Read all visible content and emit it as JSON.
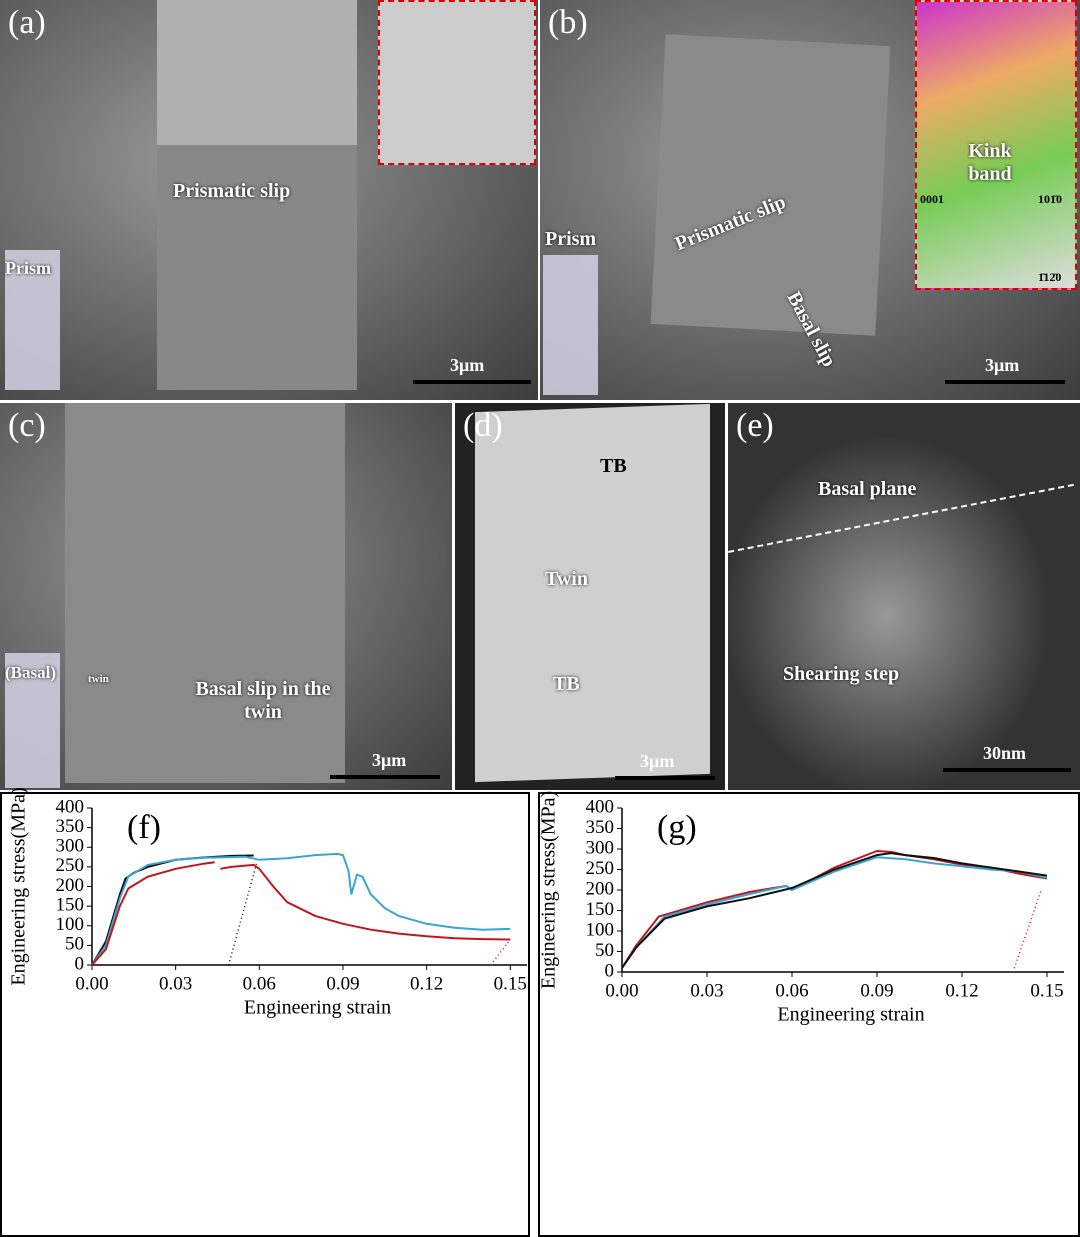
{
  "panels": [
    {
      "label": "(a)",
      "texts": [
        "Prismatic slip",
        "Prism"
      ],
      "scale_bar": "3μm"
    },
    {
      "label": "(b)",
      "texts": [
        "Prismatic slip",
        "Basal slip",
        "Prism",
        "Kink band",
        "0001",
        "101̄0",
        "1̄12̄0"
      ],
      "scale_bar": "3μm"
    },
    {
      "label": "(c)",
      "texts": [
        "Basal slip in the twin",
        "(Basal)",
        "twin"
      ],
      "scale_bar": "3μm"
    },
    {
      "label": "(d)",
      "texts": [
        "TB",
        "Twin",
        "TB"
      ],
      "scale_bar": "3μm"
    },
    {
      "label": "(e)",
      "texts": [
        "Basal plane",
        "Shearing step"
      ],
      "scale_bar": "30nm"
    }
  ],
  "chart_data": [
    {
      "type": "line",
      "panel_label": "(f)",
      "x_label": "Engineering strain",
      "y_label": "Engineering stress(MPa)",
      "xlim": [
        0,
        0.156
      ],
      "ylim": [
        0,
        400
      ],
      "xticks": [
        {
          "value": 0,
          "label": "0.00"
        },
        0.03,
        0.06,
        0.09,
        0.12,
        0.15
      ],
      "yticks": [
        0,
        50,
        100,
        150,
        200,
        250,
        300,
        350,
        400
      ],
      "series": [
        {
          "color": "#111111",
          "x": [
            0,
            0.005,
            0.01,
            0.012,
            0.015,
            0.02,
            0.03,
            0.04,
            0.05,
            0.058
          ],
          "values": [
            0,
            60,
            180,
            220,
            235,
            250,
            268,
            274,
            278,
            279
          ]
        },
        {
          "color": "#111111",
          "style": "dotted",
          "x": [
            0.049,
            0.059
          ],
          "values": [
            0,
            258
          ]
        },
        {
          "color": "#3aa6d0",
          "x": [
            0,
            0.005,
            0.01,
            0.013,
            0.02,
            0.03,
            0.04,
            0.05,
            0.055,
            0.06,
            0.07,
            0.08,
            0.088,
            0.09,
            0.092,
            0.093,
            0.095,
            0.097,
            0.1,
            0.105,
            0.11,
            0.12,
            0.13,
            0.14,
            0.15
          ],
          "values": [
            0,
            50,
            170,
            225,
            255,
            268,
            273,
            275,
            276,
            268,
            272,
            280,
            283,
            280,
            240,
            180,
            230,
            225,
            180,
            145,
            125,
            105,
            95,
            90,
            92
          ]
        },
        {
          "color": "#c0171c",
          "x": [
            0,
            0.005,
            0.01,
            0.013,
            0.02,
            0.03,
            0.04,
            0.044,
            0.045,
            0.046,
            0.05,
            0.058,
            0.06,
            0.065,
            0.07,
            0.08,
            0.09,
            0.1,
            0.11,
            0.12,
            0.13,
            0.14,
            0.15
          ],
          "values": [
            0,
            40,
            150,
            195,
            225,
            245,
            258,
            262,
            null,
            245,
            250,
            255,
            245,
            200,
            160,
            125,
            105,
            90,
            80,
            73,
            68,
            66,
            65
          ]
        },
        {
          "color": "#c0171c",
          "style": "dotted",
          "x": [
            0.143,
            0.15
          ],
          "values": [
            0,
            65
          ]
        }
      ]
    },
    {
      "type": "line",
      "panel_label": "(g)",
      "x_label": "Engineering strain",
      "y_label": "Engineering stress(MPa)",
      "xlim": [
        0,
        0.156
      ],
      "ylim": [
        0,
        400
      ],
      "xticks": [
        {
          "value": 0,
          "label": "0.00"
        },
        0.03,
        0.06,
        0.09,
        0.12,
        0.15
      ],
      "yticks": [
        0,
        50,
        100,
        150,
        200,
        250,
        300,
        350,
        400
      ],
      "series": [
        {
          "color": "#c0171c",
          "x": [
            0,
            0.005,
            0.013,
            0.03,
            0.045,
            0.058,
            0.06,
            0.075,
            0.09,
            0.095,
            0.1,
            0.11,
            0.12,
            0.13,
            0.14,
            0.15
          ],
          "values": [
            10,
            65,
            135,
            170,
            195,
            210,
            200,
            255,
            295,
            293,
            285,
            275,
            262,
            255,
            240,
            228
          ]
        },
        {
          "color": "#3aa6d0",
          "x": [
            0,
            0.005,
            0.015,
            0.03,
            0.045,
            0.058,
            0.06,
            0.075,
            0.09,
            0.1,
            0.11,
            0.12,
            0.13,
            0.14,
            0.15
          ],
          "values": [
            10,
            60,
            135,
            165,
            190,
            210,
            200,
            245,
            280,
            275,
            265,
            258,
            250,
            245,
            230
          ]
        },
        {
          "color": "#111111",
          "x": [
            0,
            0.005,
            0.015,
            0.03,
            0.045,
            0.06,
            0.075,
            0.09,
            0.095,
            0.1,
            0.11,
            0.12,
            0.13,
            0.14,
            0.15
          ],
          "values": [
            10,
            60,
            130,
            160,
            180,
            205,
            250,
            285,
            290,
            285,
            278,
            265,
            255,
            245,
            235
          ]
        },
        {
          "color": "#c0171c",
          "style": "dotted",
          "x": [
            0.138,
            0.148
          ],
          "values": [
            0,
            200
          ]
        }
      ]
    }
  ]
}
